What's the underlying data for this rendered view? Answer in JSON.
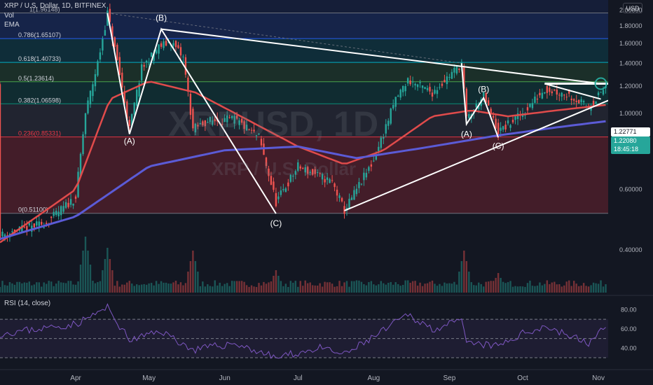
{
  "header": {
    "symbol_line": "XRP / U.S. Dollar, 1D, BITFINEX",
    "vol_label": "Vol",
    "ema_label": "EMA"
  },
  "currency_button": "USD",
  "watermark": {
    "main": "XRPUSD, 1D",
    "sub": "XRP / U.S. Dollar"
  },
  "price_tags": {
    "level": "1.22771",
    "last": "1.22080",
    "countdown": "18:45:18"
  },
  "fib_labels": [
    "1(1.96148)",
    "0.786(1.65107)",
    "0.618(1.40733)",
    "0.5(1.23614)",
    "0.382(1.06598)",
    "0.236(0.85331)",
    "0(0.51100)"
  ],
  "wave_labels": [
    "(A)",
    "(B)",
    "(C)",
    "(A)",
    "(B)",
    "(C)"
  ],
  "rsi_label": "RSI (14, close)",
  "colors": {
    "background": "#131722",
    "candle_up": "#26a69a",
    "candle_down": "#ef5350",
    "ema_fast": "#e04b4b",
    "ema_slow": "#5b5bd6",
    "rsi_line": "#7e57c2",
    "trendline": "#ffffff",
    "price_tag": "#26a69a"
  },
  "chart_data": {
    "type": "candlestick",
    "title": "XRP / U.S. Dollar, 1D, BITFINEX",
    "y_axis": {
      "scale": "log",
      "ticks": [
        "2.00000",
        "1.80000",
        "1.60000",
        "1.40000",
        "1.20000",
        "1.00000",
        "0.80000",
        "0.60000",
        "0.40000"
      ],
      "range": [
        0.3,
        2.14
      ]
    },
    "x_axis": {
      "ticks": [
        "Apr",
        "May",
        "Jun",
        "Jul",
        "Aug",
        "Sep",
        "Oct",
        "Nov"
      ],
      "tick_dates": [
        "2021-04-01",
        "2021-05-01",
        "2021-06-01",
        "2021-07-01",
        "2021-08-01",
        "2021-09-01",
        "2021-10-01",
        "2021-11-01"
      ],
      "range": [
        "2021-03-01",
        "2021-11-05"
      ]
    },
    "price_path": [
      [
        "2021-03-01",
        0.44
      ],
      [
        "2021-03-20",
        0.48
      ],
      [
        "2021-04-01",
        0.57
      ],
      [
        "2021-04-05",
        1.0
      ],
      [
        "2021-04-10",
        1.4
      ],
      [
        "2021-04-14",
        1.96
      ],
      [
        "2021-04-18",
        1.42
      ],
      [
        "2021-04-23",
        0.9
      ],
      [
        "2021-04-28",
        1.35
      ],
      [
        "2021-05-05",
        1.56
      ],
      [
        "2021-05-10",
        1.62
      ],
      [
        "2021-05-15",
        1.45
      ],
      [
        "2021-05-19",
        0.9
      ],
      [
        "2021-05-25",
        0.95
      ],
      [
        "2021-06-05",
        0.96
      ],
      [
        "2021-06-15",
        0.85
      ],
      [
        "2021-06-22",
        0.55
      ],
      [
        "2021-07-01",
        0.7
      ],
      [
        "2021-07-15",
        0.63
      ],
      [
        "2021-07-20",
        0.52
      ],
      [
        "2021-08-01",
        0.73
      ],
      [
        "2021-08-10",
        1.1
      ],
      [
        "2021-08-15",
        1.25
      ],
      [
        "2021-08-25",
        1.15
      ],
      [
        "2021-09-06",
        1.4
      ],
      [
        "2021-09-08",
        0.96
      ],
      [
        "2021-09-15",
        1.12
      ],
      [
        "2021-09-21",
        0.88
      ],
      [
        "2021-10-01",
        1.0
      ],
      [
        "2021-10-10",
        1.18
      ],
      [
        "2021-10-20",
        1.13
      ],
      [
        "2021-10-28",
        1.04
      ],
      [
        "2021-11-05",
        1.22
      ]
    ],
    "fib_levels": [
      {
        "ratio": "1",
        "price": 1.96148
      },
      {
        "ratio": "0.786",
        "price": 1.65107
      },
      {
        "ratio": "0.618",
        "price": 1.40733
      },
      {
        "ratio": "0.5",
        "price": 1.23614
      },
      {
        "ratio": "0.382",
        "price": 1.06598
      },
      {
        "ratio": "0.236",
        "price": 0.85331
      },
      {
        "ratio": "0",
        "price": 0.511
      }
    ],
    "wave_points_1": [
      [
        "2021-04-14",
        1.96
      ],
      [
        "2021-04-23",
        0.87
      ],
      [
        "2021-05-06",
        1.76
      ],
      [
        "2021-06-22",
        0.51
      ]
    ],
    "wave_points_2": [
      [
        "2021-09-06",
        1.4
      ],
      [
        "2021-09-08",
        0.93
      ],
      [
        "2021-09-15",
        1.11
      ],
      [
        "2021-09-21",
        0.85
      ]
    ],
    "trendlines": [
      [
        [
          "2021-05-06",
          1.76
        ],
        [
          "2021-11-02",
          1.22
        ]
      ],
      [
        [
          "2021-07-20",
          0.52
        ],
        [
          "2021-11-05",
          1.09
        ]
      ],
      [
        [
          "2021-10-10",
          1.22
        ],
        [
          "2021-11-02",
          1.1
        ]
      ]
    ],
    "ema_fast": [
      [
        "2021-03-01",
        0.42
      ],
      [
        "2021-04-01",
        0.6
      ],
      [
        "2021-04-15",
        1.1
      ],
      [
        "2021-05-01",
        1.24
      ],
      [
        "2021-05-20",
        1.15
      ],
      [
        "2021-06-10",
        0.96
      ],
      [
        "2021-07-01",
        0.8
      ],
      [
        "2021-07-20",
        0.71
      ],
      [
        "2021-08-05",
        0.78
      ],
      [
        "2021-08-25",
        0.98
      ],
      [
        "2021-09-10",
        1.02
      ],
      [
        "2021-09-25",
        0.98
      ],
      [
        "2021-10-15",
        1.02
      ],
      [
        "2021-11-05",
        1.06
      ]
    ],
    "ema_slow": [
      [
        "2021-03-01",
        0.43
      ],
      [
        "2021-04-01",
        0.5
      ],
      [
        "2021-05-01",
        0.7
      ],
      [
        "2021-06-01",
        0.78
      ],
      [
        "2021-07-01",
        0.8
      ],
      [
        "2021-07-25",
        0.74
      ],
      [
        "2021-08-20",
        0.79
      ],
      [
        "2021-09-20",
        0.86
      ],
      [
        "2021-10-15",
        0.91
      ],
      [
        "2021-11-05",
        0.95
      ]
    ],
    "volume_spikes": [
      [
        "2021-04-05",
        1.0
      ],
      [
        "2021-04-14",
        0.8
      ],
      [
        "2021-05-19",
        0.75
      ],
      [
        "2021-06-22",
        0.4
      ],
      [
        "2021-09-07",
        0.75
      ],
      [
        "2021-09-21",
        0.35
      ]
    ],
    "rsi": {
      "ticks": [
        "80.00",
        "60.00",
        "40.00"
      ],
      "range": [
        22,
        92
      ],
      "bands": [
        70,
        50,
        30
      ],
      "path": [
        [
          "2021-03-01",
          55
        ],
        [
          "2021-04-01",
          65
        ],
        [
          "2021-04-14",
          82
        ],
        [
          "2021-04-23",
          48
        ],
        [
          "2021-05-06",
          58
        ],
        [
          "2021-05-19",
          38
        ],
        [
          "2021-06-05",
          45
        ],
        [
          "2021-06-22",
          30
        ],
        [
          "2021-07-10",
          40
        ],
        [
          "2021-07-20",
          33
        ],
        [
          "2021-08-05",
          58
        ],
        [
          "2021-08-15",
          75
        ],
        [
          "2021-08-25",
          60
        ],
        [
          "2021-09-06",
          68
        ],
        [
          "2021-09-08",
          45
        ],
        [
          "2021-09-21",
          42
        ],
        [
          "2021-10-01",
          55
        ],
        [
          "2021-10-10",
          63
        ],
        [
          "2021-10-28",
          45
        ],
        [
          "2021-11-05",
          64
        ]
      ]
    }
  }
}
